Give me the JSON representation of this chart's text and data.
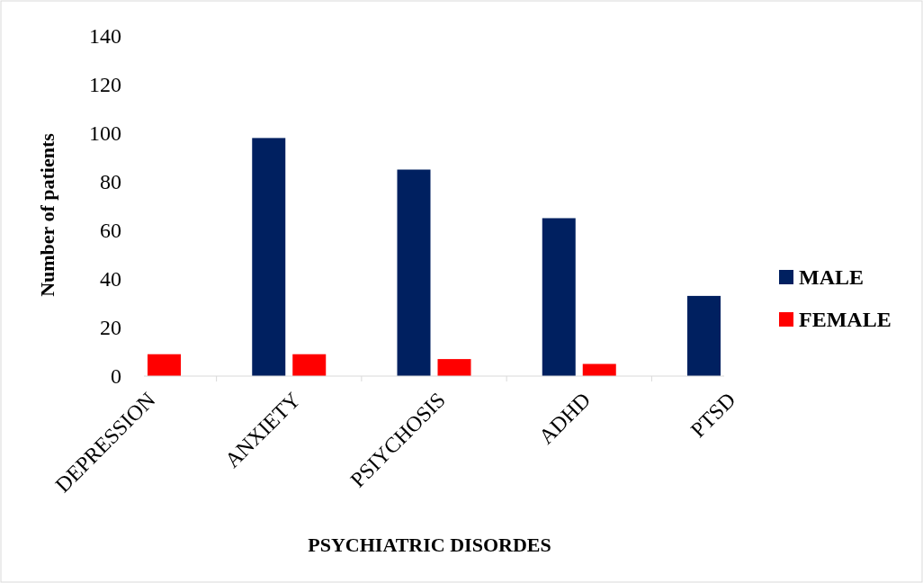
{
  "chart_data": {
    "type": "bar",
    "xlabel": "PSYCHIATRIC DISORDES",
    "ylabel": "Number of patients",
    "categories": [
      "DEPRESSION",
      "ANXIETY",
      "PSIYCHOSIS",
      "ADHD",
      "PTSD"
    ],
    "series": [
      {
        "name": "MALE",
        "color": "#002060",
        "values": [
          0,
          98,
          85,
          65,
          33
        ]
      },
      {
        "name": "FEMALE",
        "color": "#ff0000",
        "values": [
          9,
          9,
          7,
          5,
          0
        ]
      }
    ],
    "ylim": [
      0,
      140
    ],
    "yticks": [
      0,
      20,
      40,
      60,
      80,
      100,
      120,
      140
    ],
    "grid": false,
    "legend": "right"
  }
}
